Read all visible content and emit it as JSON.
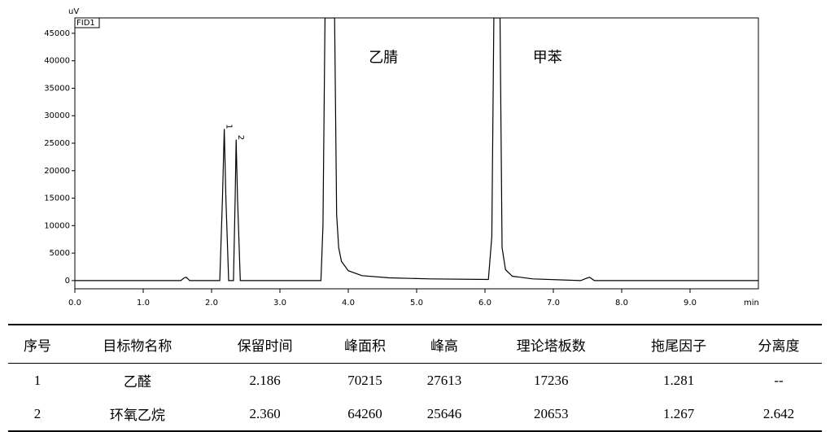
{
  "chart_data": {
    "type": "line",
    "y_label": "uV",
    "x_label": "min",
    "detector": "FID1",
    "color": "#000000",
    "x": [
      0,
      1.55,
      1.6,
      1.63,
      1.68,
      2.12,
      2.16,
      2.186,
      2.21,
      2.25,
      2.32,
      2.345,
      2.36,
      2.38,
      2.42,
      3.6,
      3.63,
      3.66,
      3.8,
      3.83,
      3.86,
      3.9,
      4.0,
      4.2,
      4.6,
      5.2,
      6.05,
      6.1,
      6.13,
      6.22,
      6.25,
      6.3,
      6.4,
      6.7,
      7.4,
      7.48,
      7.53,
      7.6,
      8.5,
      10
    ],
    "values": [
      0,
      0,
      500,
      600,
      0,
      0,
      15000,
      27613,
      15000,
      0,
      0,
      15000,
      25646,
      15000,
      0,
      0,
      10000,
      47800,
      47800,
      12000,
      6000,
      3500,
      1800,
      900,
      500,
      300,
      200,
      8000,
      47800,
      47800,
      6000,
      2000,
      800,
      300,
      0,
      400,
      600,
      0,
      0,
      0
    ],
    "xlim": [
      0,
      10
    ],
    "ylim": [
      -1500,
      47800
    ],
    "xticks": [
      {
        "value": 0,
        "label": "0.0"
      },
      {
        "value": 1,
        "label": "1.0"
      },
      {
        "value": 2,
        "label": "2.0"
      },
      {
        "value": 3,
        "label": "3.0"
      },
      {
        "value": 4,
        "label": "4.0"
      },
      {
        "value": 5,
        "label": "5.0"
      },
      {
        "value": 6,
        "label": "6.0"
      },
      {
        "value": 7,
        "label": "7.0"
      },
      {
        "value": 8,
        "label": "8.0"
      },
      {
        "value": 9,
        "label": "9.0"
      }
    ],
    "yticks": [
      0,
      5000,
      10000,
      15000,
      20000,
      25000,
      30000,
      35000,
      40000,
      45000
    ],
    "annotations": [
      {
        "text": "乙腈",
        "x": 4.3,
        "y": 40500
      },
      {
        "text": "甲苯",
        "x": 6.7,
        "y": 40500
      }
    ],
    "peak_labels": [
      {
        "text": "1",
        "x": 2.186,
        "y": 28500
      },
      {
        "text": "2",
        "x": 2.36,
        "y": 26500
      }
    ]
  },
  "table": {
    "header": [
      "序号",
      "目标物名称",
      "保留时间",
      "峰面积",
      "峰高",
      "理论塔板数",
      "拖尾因子",
      "分离度"
    ],
    "rows": [
      [
        "1",
        "乙醛",
        "2.186",
        "70215",
        "27613",
        "17236",
        "1.281",
        "--"
      ],
      [
        "2",
        "环氧乙烷",
        "2.360",
        "64260",
        "25646",
        "20653",
        "1.267",
        "2.642"
      ]
    ]
  }
}
